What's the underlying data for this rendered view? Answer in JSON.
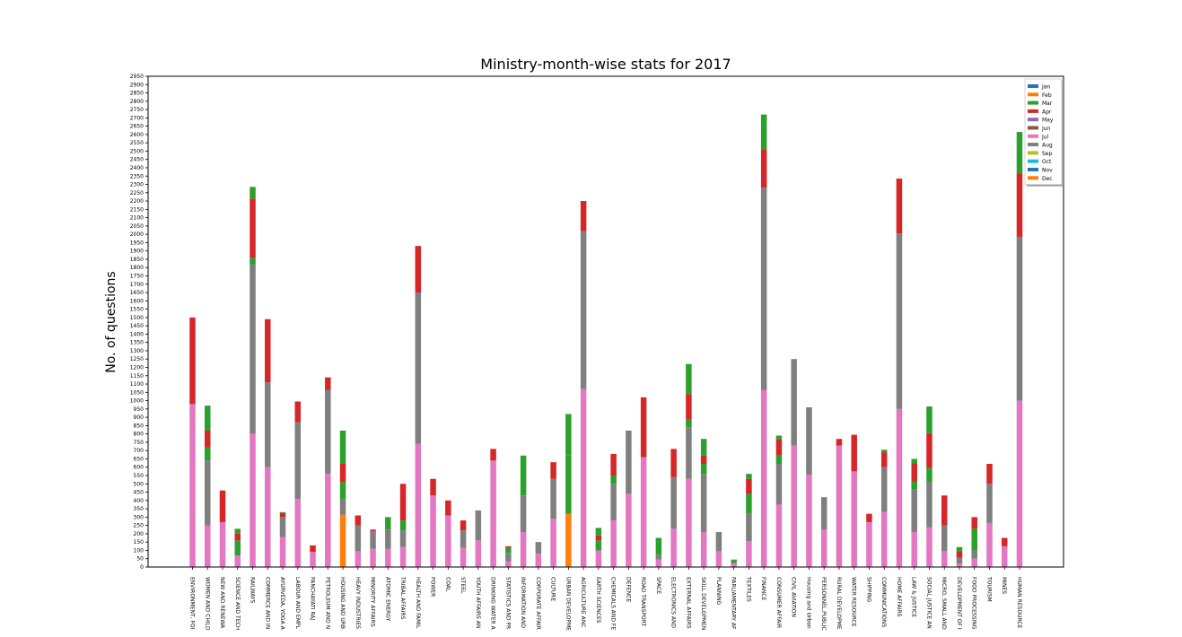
{
  "chart_data": {
    "type": "bar",
    "stacked": true,
    "title": "Ministry-month-wise stats for 2017",
    "xlabel": "",
    "ylabel": "No. of questions",
    "ylim": [
      0,
      2950
    ],
    "y_ticks": [
      0,
      50,
      100,
      150,
      200,
      250,
      300,
      350,
      400,
      450,
      500,
      550,
      600,
      650,
      700,
      750,
      800,
      850,
      900,
      950,
      1000,
      1050,
      1100,
      1150,
      1200,
      1250,
      1300,
      1350,
      1400,
      1450,
      1500,
      1550,
      1600,
      1650,
      1700,
      1750,
      1800,
      1850,
      1900,
      1950,
      2000,
      2050,
      2100,
      2150,
      2200,
      2250,
      2300,
      2350,
      2400,
      2450,
      2500,
      2550,
      2600,
      2650,
      2700,
      2750,
      2800,
      2850,
      2900,
      2950
    ],
    "grid": false,
    "legend_position": "top-right",
    "categories": [
      "ENVIRONMENT, FOI",
      "WOMEN AND CHILD",
      "NEW AND RENEWA",
      "SCIENCE AND TECH",
      "RAILWAYS",
      "COMMERCE AND IN",
      "AYURVEDA, YOGA A",
      "LABOUR AND EMPL",
      "PANCHAYATI RAJ",
      "PETROLEUM AND N",
      "HOUSING AND URB",
      "HEAVY INDUSTRIES",
      "MINORITY AFFAIRS",
      "ATOMIC ENERGY",
      "TRIBAL AFFAIRS",
      "HEALTH AND FAMIL",
      "POWER",
      "COAL",
      "STEEL",
      "YOUTH AFFAIRS AN",
      "DRINKING WATER A",
      "STATISTICS AND PR",
      "INFORMATION AND",
      "CORPORATE AFFAIR",
      "CULTURE",
      "URBAN DEVELOPME",
      "AGRICULTURE  ANC",
      "EARTH SCIENCES",
      "CHEMICALS AND FE",
      "DEFENCE",
      "ROAD TRANSPORT",
      "SPACE",
      "ELECTRONICS AND",
      "EXTERNAL AFFAIRS",
      "SKILL DEVELOPMEN",
      "PLANNING",
      "PARLIAMENTARY AF",
      "TEXTILES",
      "FINANCE",
      "CONSUMER AFFAIR",
      "CIVIL AVIATION",
      "Housing and Urban",
      "PERSONNEL,PUBLIC",
      "RURAL DEVELOPME",
      "WATER RESOURCE",
      "SHIPPING",
      "COMMUNICATIONS",
      "HOME AFFAIRS",
      "LAW & JUSTICE",
      "SOCIAL JUSTICE AN",
      "MICRO, SMALL AND",
      "DEVELOPMENT OF I",
      "FOOD PROCESSING",
      "TOURISM",
      "MINES",
      "HUMAN RESOURCE"
    ],
    "series": [
      {
        "name": "Jan",
        "color": "#1f77b4",
        "values": [
          0,
          0,
          0,
          0,
          0,
          0,
          0,
          0,
          0,
          0,
          0,
          0,
          0,
          0,
          0,
          0,
          0,
          0,
          0,
          0,
          0,
          0,
          0,
          0,
          0,
          0,
          0,
          0,
          0,
          0,
          0,
          0,
          0,
          0,
          0,
          0,
          0,
          0,
          0,
          0,
          0,
          0,
          0,
          0,
          0,
          0,
          0,
          0,
          0,
          0,
          0,
          0,
          0,
          0,
          0,
          0
        ]
      },
      {
        "name": "Feb",
        "color": "#ff7f0e",
        "values": [
          0,
          0,
          0,
          0,
          0,
          0,
          0,
          0,
          0,
          0,
          315,
          0,
          0,
          0,
          0,
          0,
          0,
          0,
          0,
          0,
          0,
          0,
          0,
          0,
          0,
          320,
          0,
          0,
          0,
          0,
          0,
          0,
          0,
          0,
          0,
          0,
          0,
          0,
          0,
          0,
          0,
          0,
          0,
          0,
          0,
          0,
          0,
          0,
          0,
          0,
          0,
          0,
          0,
          0,
          0,
          0
        ]
      },
      {
        "name": "Mar",
        "color": "#2ca02c",
        "values": [
          0,
          0,
          0,
          0,
          0,
          0,
          0,
          0,
          0,
          0,
          0,
          0,
          0,
          0,
          0,
          0,
          0,
          0,
          0,
          0,
          0,
          0,
          0,
          0,
          0,
          0,
          0,
          0,
          0,
          0,
          0,
          0,
          0,
          0,
          0,
          0,
          0,
          0,
          0,
          0,
          0,
          0,
          0,
          0,
          0,
          0,
          0,
          0,
          0,
          0,
          0,
          0,
          0,
          0,
          0,
          0
        ]
      },
      {
        "name": "Apr",
        "color": "#d62728",
        "values": [
          0,
          0,
          0,
          0,
          0,
          0,
          0,
          0,
          0,
          0,
          0,
          0,
          0,
          0,
          0,
          0,
          0,
          0,
          0,
          0,
          0,
          0,
          0,
          0,
          0,
          0,
          0,
          0,
          0,
          0,
          0,
          0,
          0,
          0,
          0,
          0,
          0,
          0,
          0,
          0,
          0,
          0,
          0,
          0,
          0,
          0,
          0,
          0,
          0,
          0,
          0,
          0,
          0,
          0,
          0,
          0
        ]
      },
      {
        "name": "May",
        "color": "#9467bd",
        "values": [
          0,
          0,
          0,
          0,
          0,
          0,
          0,
          0,
          0,
          0,
          0,
          0,
          0,
          0,
          0,
          0,
          0,
          0,
          0,
          0,
          0,
          0,
          0,
          0,
          0,
          0,
          0,
          0,
          0,
          0,
          0,
          0,
          0,
          0,
          0,
          0,
          0,
          0,
          0,
          0,
          0,
          0,
          0,
          0,
          0,
          0,
          0,
          0,
          0,
          0,
          0,
          0,
          0,
          0,
          0,
          0
        ]
      },
      {
        "name": "Jun",
        "color": "#8c564b",
        "values": [
          0,
          0,
          0,
          0,
          0,
          0,
          0,
          0,
          0,
          0,
          0,
          0,
          0,
          0,
          0,
          0,
          0,
          0,
          0,
          0,
          0,
          0,
          0,
          0,
          0,
          0,
          0,
          0,
          0,
          0,
          0,
          0,
          0,
          0,
          0,
          0,
          0,
          0,
          0,
          0,
          0,
          0,
          0,
          0,
          0,
          0,
          0,
          0,
          0,
          0,
          0,
          0,
          0,
          0,
          0,
          0
        ]
      },
      {
        "name": "Jul",
        "color": "#e377c2",
        "values": [
          980,
          250,
          270,
          70,
          800,
          600,
          180,
          410,
          90,
          560,
          0,
          95,
          110,
          110,
          120,
          740,
          430,
          310,
          115,
          160,
          640,
          35,
          210,
          80,
          290,
          0,
          1070,
          100,
          280,
          440,
          660,
          45,
          230,
          530,
          210,
          95,
          20,
          155,
          1065,
          375,
          730,
          555,
          225,
          730,
          575,
          270,
          330,
          950,
          210,
          240,
          95,
          20,
          50,
          265,
          125,
          1000
        ]
      },
      {
        "name": "Aug",
        "color": "#7f7f7f",
        "values": [
          0,
          390,
          0,
          0,
          1020,
          510,
          120,
          460,
          0,
          505,
          95,
          155,
          105,
          115,
          100,
          910,
          0,
          0,
          105,
          180,
          0,
          50,
          220,
          70,
          240,
          0,
          950,
          0,
          220,
          380,
          0,
          30,
          310,
          310,
          350,
          115,
          10,
          165,
          1215,
          245,
          520,
          405,
          195,
          0,
          0,
          0,
          270,
          1055,
          255,
          275,
          155,
          35,
          50,
          235,
          0,
          985
        ]
      },
      {
        "name": "Sep",
        "color": "#bcbd22",
        "values": [
          0,
          0,
          0,
          0,
          0,
          0,
          0,
          0,
          0,
          0,
          0,
          0,
          0,
          0,
          0,
          0,
          0,
          0,
          0,
          0,
          0,
          0,
          0,
          0,
          0,
          0,
          0,
          0,
          0,
          0,
          0,
          0,
          0,
          0,
          0,
          0,
          0,
          0,
          0,
          0,
          0,
          0,
          0,
          0,
          0,
          0,
          0,
          0,
          0,
          0,
          0,
          0,
          0,
          0,
          0,
          0
        ]
      },
      {
        "name": "Oct",
        "color": "#17becf",
        "values": [
          0,
          0,
          0,
          0,
          0,
          0,
          0,
          0,
          0,
          0,
          0,
          0,
          0,
          0,
          0,
          0,
          0,
          0,
          0,
          0,
          0,
          0,
          0,
          0,
          0,
          0,
          0,
          0,
          0,
          0,
          0,
          0,
          0,
          0,
          0,
          0,
          0,
          0,
          0,
          0,
          0,
          0,
          0,
          0,
          0,
          0,
          0,
          0,
          0,
          0,
          0,
          0,
          0,
          0,
          0,
          0
        ]
      },
      {
        "name": "Nov",
        "color": "#1f77b4",
        "values": [
          0,
          0,
          0,
          0,
          0,
          0,
          0,
          0,
          0,
          0,
          0,
          0,
          0,
          0,
          0,
          0,
          0,
          0,
          0,
          0,
          0,
          0,
          0,
          0,
          0,
          0,
          0,
          0,
          0,
          0,
          0,
          0,
          0,
          0,
          0,
          0,
          0,
          0,
          0,
          0,
          0,
          0,
          0,
          0,
          0,
          0,
          0,
          0,
          0,
          0,
          0,
          0,
          0,
          0,
          0,
          0
        ]
      },
      {
        "name": "Dec",
        "color": "#ff7f0e",
        "values": [
          0,
          0,
          0,
          0,
          0,
          0,
          0,
          0,
          0,
          0,
          0,
          0,
          0,
          0,
          0,
          0,
          0,
          0,
          0,
          0,
          0,
          0,
          0,
          0,
          0,
          0,
          0,
          0,
          0,
          0,
          0,
          0,
          0,
          0,
          0,
          0,
          0,
          0,
          0,
          0,
          0,
          0,
          0,
          0,
          0,
          0,
          0,
          0,
          0,
          0,
          0,
          0,
          0,
          0,
          0,
          0
        ]
      },
      {
        "name": "Mar",
        "color": "#2ca02c",
        "values": [
          0,
          80,
          0,
          90,
          40,
          0,
          0,
          0,
          0,
          0,
          100,
          0,
          0,
          75,
          60,
          0,
          0,
          0,
          0,
          0,
          0,
          30,
          0,
          0,
          0,
          350,
          0,
          60,
          50,
          0,
          0,
          0,
          0,
          50,
          60,
          0,
          10,
          120,
          0,
          50,
          0,
          0,
          0,
          0,
          0,
          0,
          0,
          0,
          50,
          80,
          0,
          0,
          130,
          0,
          0,
          0
        ]
      },
      {
        "name": "Apr",
        "color": "#d62728",
        "values": [
          520,
          100,
          190,
          40,
          355,
          380,
          25,
          125,
          40,
          75,
          110,
          60,
          10,
          0,
          220,
          280,
          100,
          90,
          60,
          0,
          70,
          10,
          0,
          0,
          100,
          0,
          180,
          30,
          130,
          0,
          360,
          0,
          170,
          150,
          50,
          0,
          0,
          90,
          230,
          100,
          0,
          0,
          0,
          40,
          220,
          50,
          90,
          330,
          110,
          210,
          180,
          40,
          70,
          120,
          50,
          380
        ]
      },
      {
        "name": "Mar",
        "color": "#2ca02c",
        "values": [
          0,
          150,
          0,
          30,
          70,
          0,
          5,
          0,
          0,
          0,
          200,
          0,
          0,
          0,
          0,
          0,
          0,
          0,
          0,
          0,
          0,
          0,
          240,
          0,
          0,
          250,
          0,
          45,
          0,
          0,
          0,
          100,
          0,
          180,
          100,
          0,
          5,
          30,
          210,
          20,
          0,
          0,
          0,
          0,
          0,
          0,
          15,
          0,
          25,
          160,
          0,
          25,
          0,
          0,
          0,
          250
        ]
      }
    ]
  }
}
